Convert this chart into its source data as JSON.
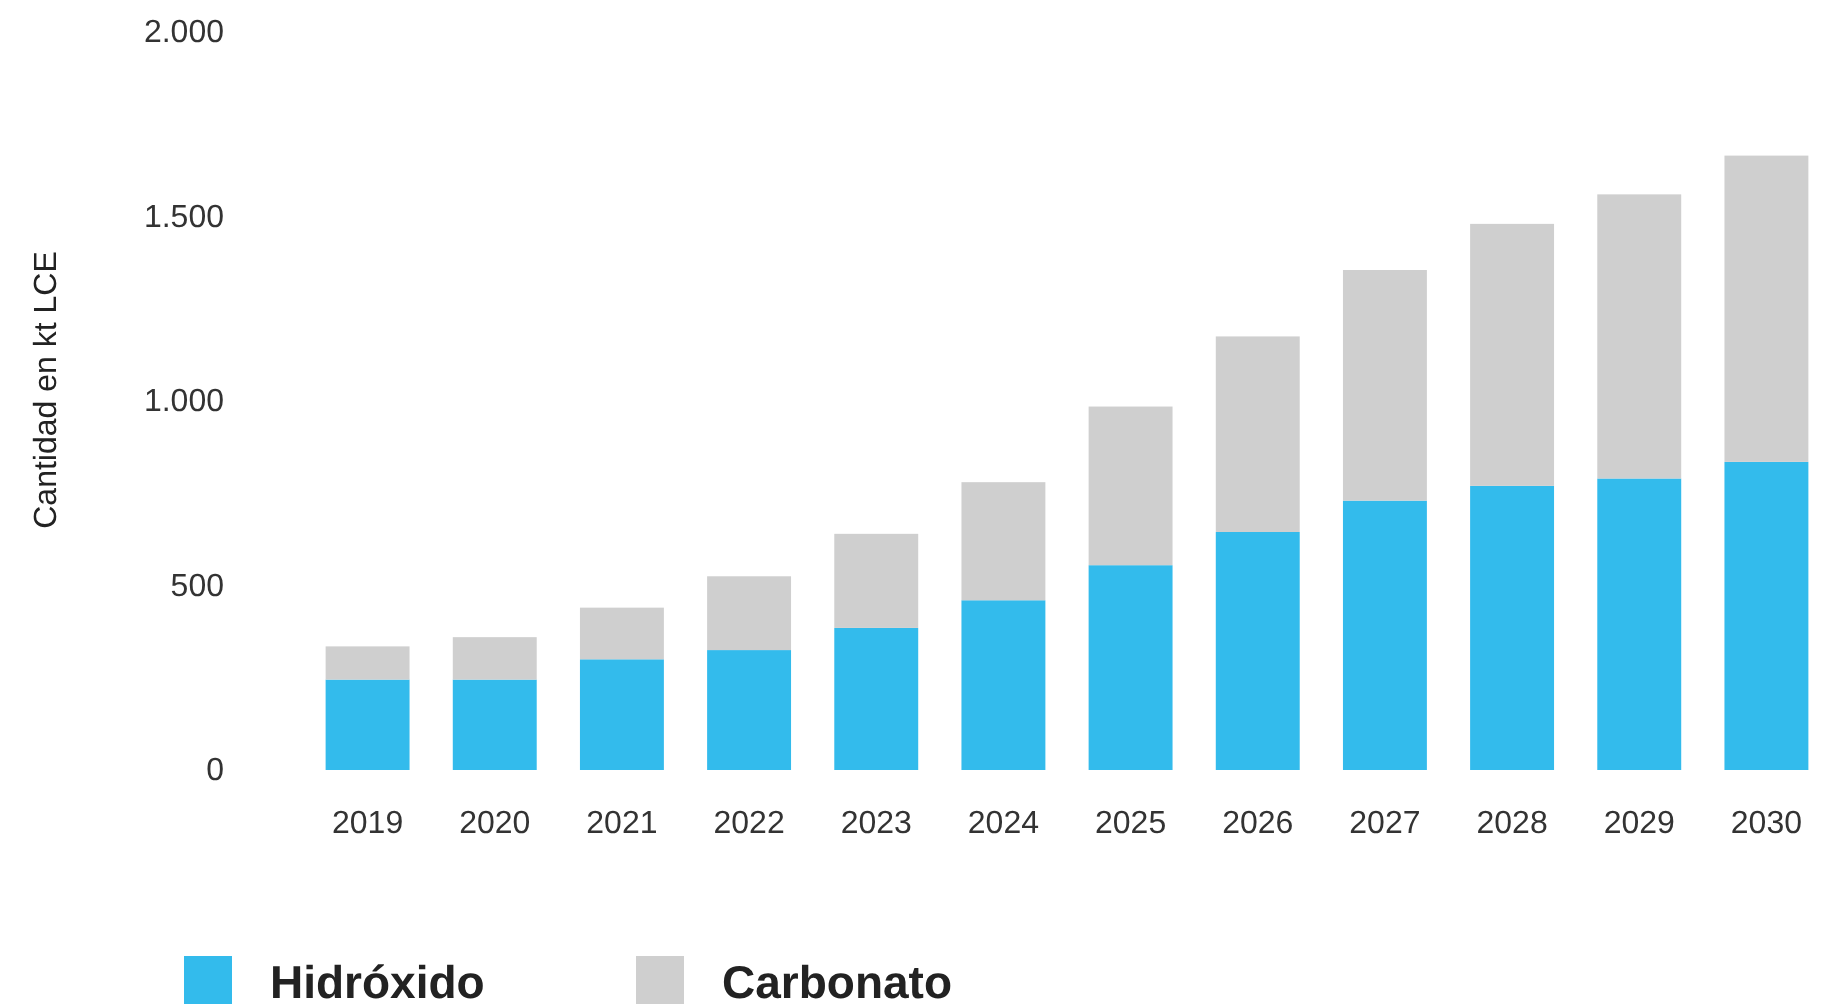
{
  "chart_data": {
    "type": "bar",
    "stacked": true,
    "ylabel": "Cantidad en kt LCE",
    "categories": [
      "2019",
      "2020",
      "2021",
      "2022",
      "2023",
      "2024",
      "2025",
      "2026",
      "2027",
      "2028",
      "2029",
      "2030"
    ],
    "series": [
      {
        "name": "Hidróxido",
        "color": "#33bbec",
        "values": [
          245,
          245,
          300,
          325,
          385,
          460,
          555,
          645,
          730,
          770,
          790,
          835
        ]
      },
      {
        "name": "Carbonato",
        "color": "#cfcfcf",
        "values": [
          90,
          115,
          140,
          200,
          255,
          320,
          430,
          530,
          625,
          710,
          770,
          830
        ]
      }
    ],
    "ylim": [
      0,
      2000
    ],
    "yticks": [
      {
        "value": 0,
        "label": "0"
      },
      {
        "value": 500,
        "label": "500"
      },
      {
        "value": 1000,
        "label": "1.000"
      },
      {
        "value": 1500,
        "label": "1.500"
      },
      {
        "value": 2000,
        "label": "2.000"
      }
    ],
    "grid": false,
    "legend": "bottom left"
  }
}
